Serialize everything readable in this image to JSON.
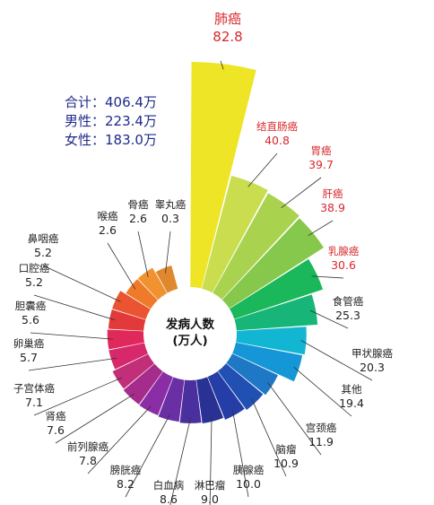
{
  "summary": {
    "total": "合计：406.4万",
    "male": "男性：223.4万",
    "female": "女性：183.0万"
  },
  "chart_data": {
    "type": "bar",
    "layout": "radial",
    "center_label": [
      "发病人数",
      "(万人)"
    ],
    "categories": [
      "肺癌",
      "结直肠癌",
      "胃癌",
      "肝癌",
      "乳腺癌",
      "食管癌",
      "甲状腺癌",
      "其他",
      "宫颈癌",
      "脑瘤",
      "胰腺癌",
      "淋巴瘤",
      "白血病",
      "膀胱癌",
      "前列腺癌",
      "肾癌",
      "子宫体癌",
      "卵巢癌",
      "胆囊癌",
      "口腔癌",
      "鼻咽癌",
      "喉癌",
      "骨癌",
      "睾丸癌"
    ],
    "values": [
      82.8,
      40.8,
      39.7,
      38.9,
      30.6,
      25.3,
      20.3,
      19.4,
      11.9,
      10.9,
      10.0,
      9.0,
      8.6,
      8.2,
      7.8,
      7.6,
      7.1,
      5.7,
      5.6,
      5.2,
      5.2,
      2.6,
      2.6,
      0.3
    ],
    "value_labels": [
      "82.8",
      "40.8",
      "39.7",
      "38.9",
      "30.6",
      "25.3",
      "20.3",
      "19.4",
      "11.9",
      "10.9",
      "10.0",
      "9.0",
      "8.6",
      "8.2",
      "7.8",
      "7.6",
      "7.1",
      "5.7",
      "5.6",
      "5.2",
      "5.2",
      "2.6",
      "2.6",
      "0.3"
    ],
    "colors": [
      "#eee526",
      "#c9dd4e",
      "#a9d34f",
      "#86c84b",
      "#1ab85a",
      "#17b577",
      "#12b6d2",
      "#1596d6",
      "#1f78c6",
      "#2050b2",
      "#253da6",
      "#2a3194",
      "#4a2f9e",
      "#6b2fa5",
      "#8b2ea6",
      "#a52c8a",
      "#c22e78",
      "#d8286c",
      "#e0285b",
      "#e23a3a",
      "#ea5430",
      "#ef7a2a",
      "#f19230",
      "#e0882e"
    ],
    "highlighted": [
      "肺癌",
      "结直肠癌",
      "胃癌",
      "肝癌",
      "乳腺癌"
    ],
    "title": "",
    "xlabel": "",
    "ylabel": ""
  }
}
